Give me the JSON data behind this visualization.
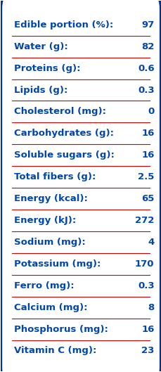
{
  "rows": [
    [
      "Edible portion (%):",
      "97"
    ],
    [
      "Water (g):",
      "82"
    ],
    [
      "Proteins (g):",
      "0.6"
    ],
    [
      "Lipids (g):",
      "0.3"
    ],
    [
      "Cholesterol (mg):",
      "0"
    ],
    [
      "Carbohydrates (g):",
      "16"
    ],
    [
      "Soluble sugars (g):",
      "16"
    ],
    [
      "Total fibers (g):",
      "2.5"
    ],
    [
      "Energy (kcal):",
      "65"
    ],
    [
      "Energy (kJ):",
      "272"
    ],
    [
      "Sodium (mg):",
      "4"
    ],
    [
      "Potassium (mg):",
      "170"
    ],
    [
      "Ferro (mg):",
      "0.3"
    ],
    [
      "Calcium (mg):",
      "8"
    ],
    [
      "Phosphorus (mg):",
      "16"
    ],
    [
      "Vitamin C (mg):",
      "23"
    ]
  ],
  "text_color": "#0047AB",
  "line_color": "#CC0000",
  "bg_color": "#FFFFFF",
  "border_color": "#003399",
  "font_size": 9.5,
  "fig_width": 2.3,
  "fig_height": 5.29
}
